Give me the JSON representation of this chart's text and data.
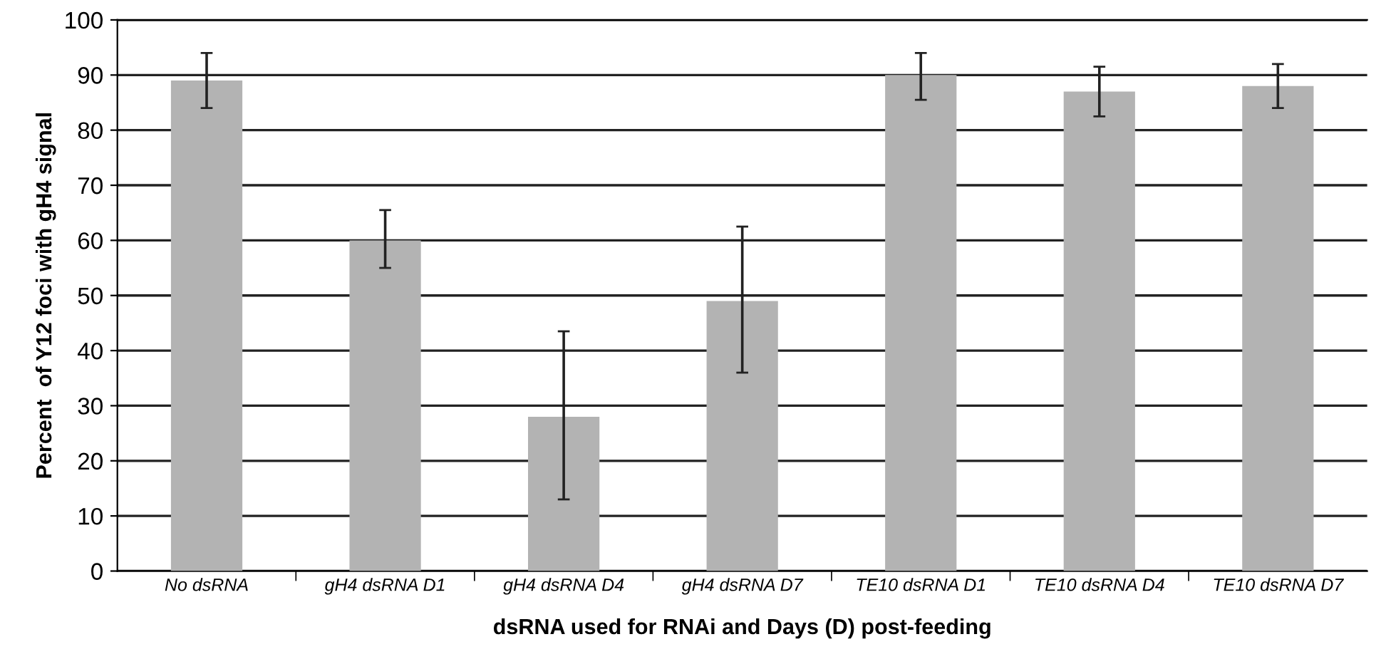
{
  "chart_data": {
    "type": "bar",
    "xlabel": "dsRNA used for RNAi and Days (D) post-feeding",
    "ylabel": "Percent  of Y12 foci with gH4 signal",
    "categories": [
      "No dsRNA",
      "gH4 dsRNA D1",
      "gH4 dsRNA D4",
      "gH4 dsRNA D7",
      "TE10 dsRNA D1",
      "TE10 dsRNA D4",
      "TE10 dsRNA D7"
    ],
    "values": [
      89,
      60,
      28,
      49,
      90,
      87,
      88
    ],
    "errors": [
      [
        84,
        94
      ],
      [
        55,
        65.5
      ],
      [
        13,
        43.5
      ],
      [
        36,
        62.5
      ],
      [
        85.5,
        94
      ],
      [
        82.5,
        91.5
      ],
      [
        84,
        92
      ]
    ],
    "color": "#b3b3b3",
    "ylim": [
      0,
      100
    ],
    "yticks": [
      0,
      10,
      20,
      30,
      40,
      50,
      60,
      70,
      80,
      90,
      100
    ],
    "grid": "y"
  }
}
